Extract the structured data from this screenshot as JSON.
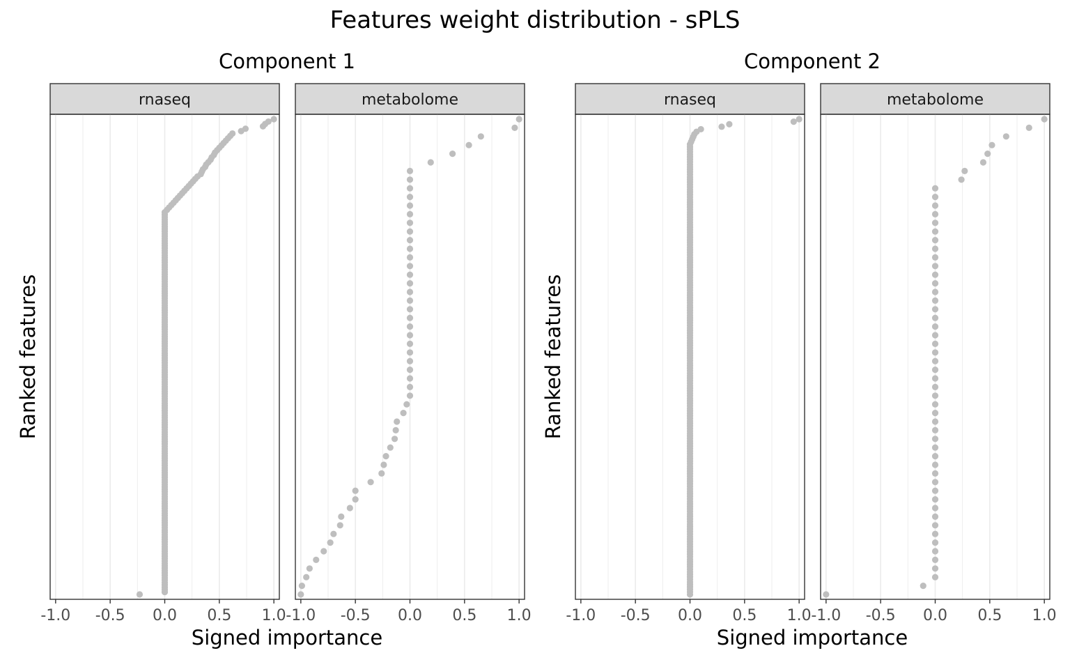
{
  "figure": {
    "title": "Features weight distribution - sPLS"
  },
  "chart_data": [
    {
      "type": "scatter",
      "title": "Component 1",
      "xlabel": "Signed importance",
      "ylabel": "Ranked features",
      "xlim": [
        -1.05,
        1.05
      ],
      "xticks": [
        "-1.0",
        "-0.5",
        "0.0",
        "0.5",
        "1.0"
      ],
      "grid": true,
      "point_color": "#bebebe",
      "panels": [
        {
          "facet_label": "rnaseq",
          "n_features": 200,
          "description_of_ranks": "feature rank from top (1) to bottom",
          "values": [
            1.0,
            0.95,
            0.92,
            0.9,
            0.74,
            0.7,
            0.62,
            0.6,
            0.58,
            0.56,
            0.54,
            0.52,
            0.5,
            0.48,
            0.46,
            0.45,
            0.43,
            0.42,
            0.4,
            0.38,
            0.37,
            0.35,
            0.34,
            0.33,
            0.3,
            0.28,
            0.26,
            0.24,
            0.22,
            0.2,
            0.18,
            0.16,
            0.14,
            0.12,
            0.1,
            0.08,
            0.06,
            0.04,
            0.02,
            0.0,
            0.0,
            0.0,
            0.0,
            0.0,
            0.0,
            0.0,
            0.0,
            0.0,
            0.0,
            0.0,
            0.0,
            0.0,
            0.0,
            0.0,
            0.0,
            0.0,
            0.0,
            0.0,
            0.0,
            0.0,
            0.0,
            0.0,
            0.0,
            0.0,
            0.0,
            0.0,
            0.0,
            0.0,
            0.0,
            0.0,
            0.0,
            0.0,
            0.0,
            0.0,
            0.0,
            0.0,
            0.0,
            0.0,
            0.0,
            0.0,
            0.0,
            0.0,
            0.0,
            0.0,
            0.0,
            0.0,
            0.0,
            0.0,
            0.0,
            0.0,
            0.0,
            0.0,
            0.0,
            0.0,
            0.0,
            0.0,
            0.0,
            0.0,
            0.0,
            0.0,
            0.0,
            0.0,
            0.0,
            0.0,
            0.0,
            0.0,
            0.0,
            0.0,
            0.0,
            0.0,
            0.0,
            0.0,
            0.0,
            0.0,
            0.0,
            0.0,
            0.0,
            0.0,
            0.0,
            0.0,
            0.0,
            0.0,
            0.0,
            0.0,
            0.0,
            0.0,
            0.0,
            0.0,
            0.0,
            0.0,
            0.0,
            0.0,
            0.0,
            0.0,
            0.0,
            0.0,
            0.0,
            0.0,
            0.0,
            0.0,
            0.0,
            0.0,
            0.0,
            0.0,
            0.0,
            0.0,
            0.0,
            0.0,
            0.0,
            0.0,
            0.0,
            0.0,
            0.0,
            0.0,
            0.0,
            0.0,
            0.0,
            0.0,
            0.0,
            0.0,
            0.0,
            0.0,
            0.0,
            0.0,
            0.0,
            0.0,
            0.0,
            0.0,
            0.0,
            0.0,
            0.0,
            0.0,
            0.0,
            0.0,
            0.0,
            0.0,
            0.0,
            0.0,
            0.0,
            0.0,
            0.0,
            0.0,
            0.0,
            0.0,
            0.0,
            0.0,
            0.0,
            0.0,
            0.0,
            0.0,
            0.0,
            0.0,
            0.0,
            0.0,
            0.0,
            0.0,
            0.0,
            0.0,
            0.0,
            -0.23
          ]
        },
        {
          "facet_label": "metabolome",
          "n_features": 56,
          "values": [
            1.0,
            0.96,
            0.65,
            0.54,
            0.39,
            0.19,
            0.0,
            0.0,
            0.0,
            0.0,
            0.0,
            0.0,
            0.0,
            0.0,
            0.0,
            0.0,
            0.0,
            0.0,
            0.0,
            0.0,
            0.0,
            0.0,
            0.0,
            0.0,
            0.0,
            0.0,
            0.0,
            0.0,
            0.0,
            0.0,
            0.0,
            0.0,
            0.0,
            -0.03,
            -0.06,
            -0.12,
            -0.13,
            -0.14,
            -0.18,
            -0.22,
            -0.24,
            -0.26,
            -0.36,
            -0.5,
            -0.5,
            -0.55,
            -0.63,
            -0.64,
            -0.7,
            -0.73,
            -0.79,
            -0.86,
            -0.92,
            -0.95,
            -0.99,
            -1.0
          ]
        }
      ]
    },
    {
      "type": "scatter",
      "title": "Component 2",
      "xlabel": "Signed importance",
      "ylabel": "Ranked features",
      "xlim": [
        -1.05,
        1.05
      ],
      "xticks": [
        "-1.0",
        "-0.5",
        "0.0",
        "0.5",
        "1.0"
      ],
      "grid": true,
      "point_color": "#bebebe",
      "panels": [
        {
          "facet_label": "rnaseq",
          "n_features": 200,
          "values": [
            1.0,
            0.95,
            0.36,
            0.29,
            0.1,
            0.06,
            0.04,
            0.03,
            0.02,
            0.01,
            0.0,
            0.0,
            0.0,
            0.0,
            0.0,
            0.0,
            0.0,
            0.0,
            0.0,
            0.0,
            0.0,
            0.0,
            0.0,
            0.0,
            0.0,
            0.0,
            0.0,
            0.0,
            0.0,
            0.0,
            0.0,
            0.0,
            0.0,
            0.0,
            0.0,
            0.0,
            0.0,
            0.0,
            0.0,
            0.0,
            0.0,
            0.0,
            0.0,
            0.0,
            0.0,
            0.0,
            0.0,
            0.0,
            0.0,
            0.0,
            0.0,
            0.0,
            0.0,
            0.0,
            0.0,
            0.0,
            0.0,
            0.0,
            0.0,
            0.0,
            0.0,
            0.0,
            0.0,
            0.0,
            0.0,
            0.0,
            0.0,
            0.0,
            0.0,
            0.0,
            0.0,
            0.0,
            0.0,
            0.0,
            0.0,
            0.0,
            0.0,
            0.0,
            0.0,
            0.0,
            0.0,
            0.0,
            0.0,
            0.0,
            0.0,
            0.0,
            0.0,
            0.0,
            0.0,
            0.0,
            0.0,
            0.0,
            0.0,
            0.0,
            0.0,
            0.0,
            0.0,
            0.0,
            0.0,
            0.0,
            0.0,
            0.0,
            0.0,
            0.0,
            0.0,
            0.0,
            0.0,
            0.0,
            0.0,
            0.0,
            0.0,
            0.0,
            0.0,
            0.0,
            0.0,
            0.0,
            0.0,
            0.0,
            0.0,
            0.0,
            0.0,
            0.0,
            0.0,
            0.0,
            0.0,
            0.0,
            0.0,
            0.0,
            0.0,
            0.0,
            0.0,
            0.0,
            0.0,
            0.0,
            0.0,
            0.0,
            0.0,
            0.0,
            0.0,
            0.0,
            0.0,
            0.0,
            0.0,
            0.0,
            0.0,
            0.0,
            0.0,
            0.0,
            0.0,
            0.0,
            0.0,
            0.0,
            0.0,
            0.0,
            0.0,
            0.0,
            0.0,
            0.0,
            0.0,
            0.0,
            0.0,
            0.0,
            0.0,
            0.0,
            0.0,
            0.0,
            0.0,
            0.0,
            0.0,
            0.0,
            0.0,
            0.0,
            0.0,
            0.0,
            0.0,
            0.0,
            0.0,
            0.0,
            0.0,
            0.0,
            0.0,
            0.0,
            0.0,
            0.0,
            0.0,
            0.0,
            0.0,
            0.0,
            0.0,
            0.0
          ]
        },
        {
          "facet_label": "metabolome",
          "n_features": 56,
          "values": [
            1.0,
            0.86,
            0.65,
            0.52,
            0.48,
            0.44,
            0.27,
            0.24,
            0.0,
            0.0,
            0.0,
            0.0,
            0.0,
            0.0,
            0.0,
            0.0,
            0.0,
            0.0,
            0.0,
            0.0,
            0.0,
            0.0,
            0.0,
            0.0,
            0.0,
            0.0,
            0.0,
            0.0,
            0.0,
            0.0,
            0.0,
            0.0,
            0.0,
            0.0,
            0.0,
            0.0,
            0.0,
            0.0,
            0.0,
            0.0,
            0.0,
            0.0,
            0.0,
            0.0,
            0.0,
            0.0,
            0.0,
            0.0,
            0.0,
            0.0,
            0.0,
            0.0,
            0.0,
            0.0,
            -0.11,
            -1.0
          ]
        }
      ]
    }
  ]
}
